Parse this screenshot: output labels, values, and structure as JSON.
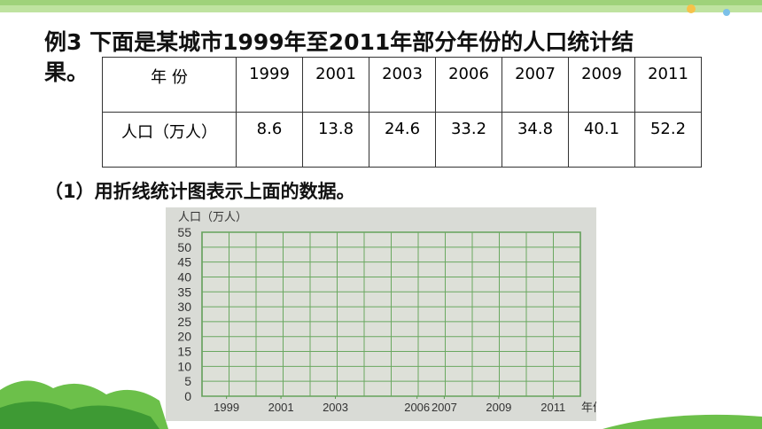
{
  "slide": {
    "title_line1": "例3 下面是某城市1999年至2011年部分年份的人口统计结",
    "title_line2": "果。",
    "table": {
      "header": [
        "年 份",
        "1999",
        "2001",
        "2003",
        "2006",
        "2007",
        "2009",
        "2011"
      ],
      "row": [
        "人口（万人）",
        "8.6",
        "13.8",
        "24.6",
        "33.2",
        "34.8",
        "40.1",
        "52.2"
      ]
    },
    "question": "（1）用折线统计图表示上面的数据。",
    "grid_chart": {
      "y_label": "人口（万人）",
      "x_label": "年份",
      "ylim": [
        0,
        55
      ],
      "yticks": [
        0,
        5,
        10,
        15,
        20,
        25,
        30,
        35,
        40,
        45,
        50,
        55
      ],
      "xlim": [
        1998.1,
        2012
      ],
      "xticks": [
        1999,
        2001,
        2003,
        2006,
        2007,
        2009,
        2011
      ]
    }
  }
}
